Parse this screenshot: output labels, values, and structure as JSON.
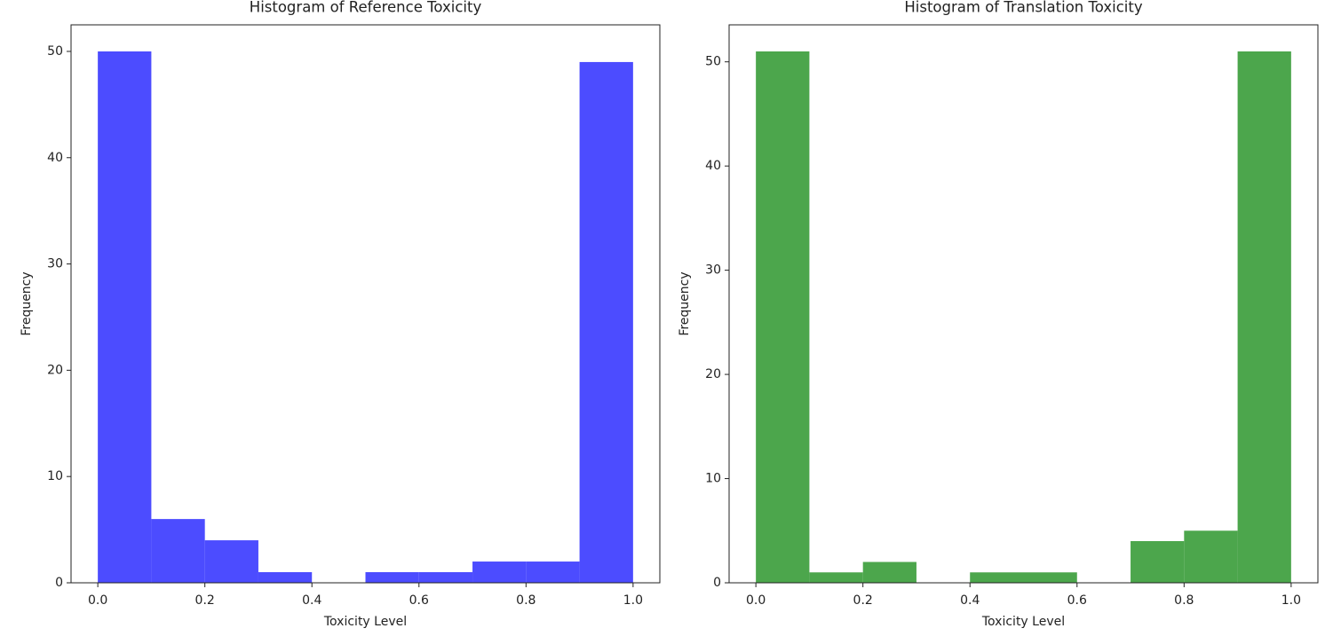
{
  "chart_data": [
    {
      "type": "histogram",
      "title": "Histogram of Reference Toxicity",
      "xlabel": "Toxicity Level",
      "ylabel": "Frequency",
      "bins": [
        0,
        0.1,
        0.2,
        0.3,
        0.4,
        0.5,
        0.6,
        0.7,
        0.8,
        0.9,
        1.0
      ],
      "values": [
        50,
        6,
        4,
        1,
        0,
        1,
        1,
        2,
        2,
        49
      ],
      "color": "#4c4cff",
      "xlim": [
        -0.05,
        1.05
      ],
      "xticks": [
        {
          "value": 0,
          "label": "0.0"
        },
        0.2,
        0.4,
        0.6,
        0.8,
        {
          "value": 1,
          "label": "1.0"
        }
      ],
      "ylim": [
        0,
        52.5
      ],
      "yticks": [
        0,
        10,
        20,
        30,
        40,
        50
      ]
    },
    {
      "type": "histogram",
      "title": "Histogram of Translation Toxicity",
      "xlabel": "Toxicity Level",
      "ylabel": "Frequency",
      "bins": [
        0,
        0.1,
        0.2,
        0.3,
        0.4,
        0.5,
        0.6,
        0.7,
        0.8,
        0.9,
        1.0
      ],
      "values": [
        51,
        1,
        2,
        0,
        1,
        1,
        0,
        4,
        5,
        51
      ],
      "color": "#4ca64c",
      "xlim": [
        -0.05,
        1.05
      ],
      "xticks": [
        {
          "value": 0,
          "label": "0.0"
        },
        0.2,
        0.4,
        0.6,
        0.8,
        {
          "value": 1,
          "label": "1.0"
        }
      ],
      "ylim": [
        0,
        53.55
      ],
      "yticks": [
        0,
        10,
        20,
        30,
        40,
        50
      ]
    }
  ]
}
